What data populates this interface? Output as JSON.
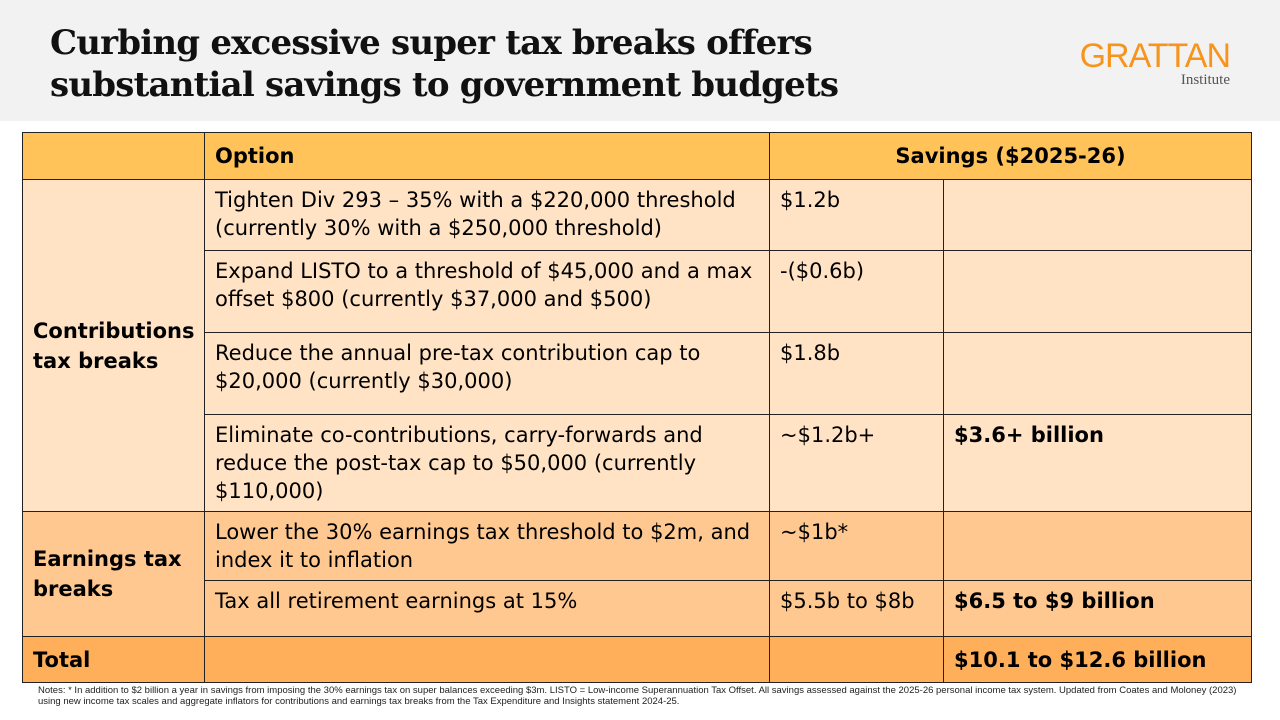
{
  "title": "Curbing excessive super tax breaks offers substantial savings to government budgets",
  "logo": {
    "name": "GRATTAN",
    "sub": "Institute",
    "color": "#f7941d"
  },
  "table": {
    "headers": {
      "category": "",
      "option": "Option",
      "savings": "Savings ($2025-26)"
    },
    "groups": [
      {
        "label": "Contributions tax breaks",
        "color": "#ffe3c4",
        "rows": [
          {
            "option": "Tighten Div 293 – 35% with a $220,000 threshold (currently 30% with a $250,000 threshold)",
            "saving": "$1.2b",
            "subtotal": ""
          },
          {
            "option": "Expand LISTO to a threshold of $45,000 and a max offset $800 (currently $37,000 and $500)",
            "saving": "-($0.6b)",
            "subtotal": ""
          },
          {
            "option": "Reduce the annual pre-tax contribution cap to $20,000 (currently $30,000)",
            "saving": "$1.8b",
            "subtotal": ""
          },
          {
            "option": "Eliminate co-contributions, carry-forwards and reduce the post-tax cap to $50,000 (currently $110,000)",
            "saving": "~$1.2b+",
            "subtotal": "$3.6+ billion"
          }
        ]
      },
      {
        "label": "Earnings tax breaks",
        "color": "#ffc890",
        "rows": [
          {
            "option": "Lower the 30% earnings tax threshold to $2m, and index it to inflation",
            "saving": "~$1b*",
            "subtotal": ""
          },
          {
            "option": "Tax all retirement earnings at 15%",
            "saving": "$5.5b to $8b",
            "subtotal": "$6.5 to $9 billion"
          }
        ]
      }
    ],
    "total": {
      "label": "Total",
      "value": "$10.1 to $12.6 billion"
    }
  },
  "notes": "Notes: * In addition to $2 billion a year in savings from imposing the 30% earnings tax on super balances exceeding $3m. LISTO = Low-income Superannuation Tax Offset. All savings assessed against the 2025-26 personal income tax system. Updated from Coates and Moloney (2023) using new income tax scales and aggregate inflators for contributions and earnings tax breaks from the Tax Expenditure and Insights statement 2024-25."
}
